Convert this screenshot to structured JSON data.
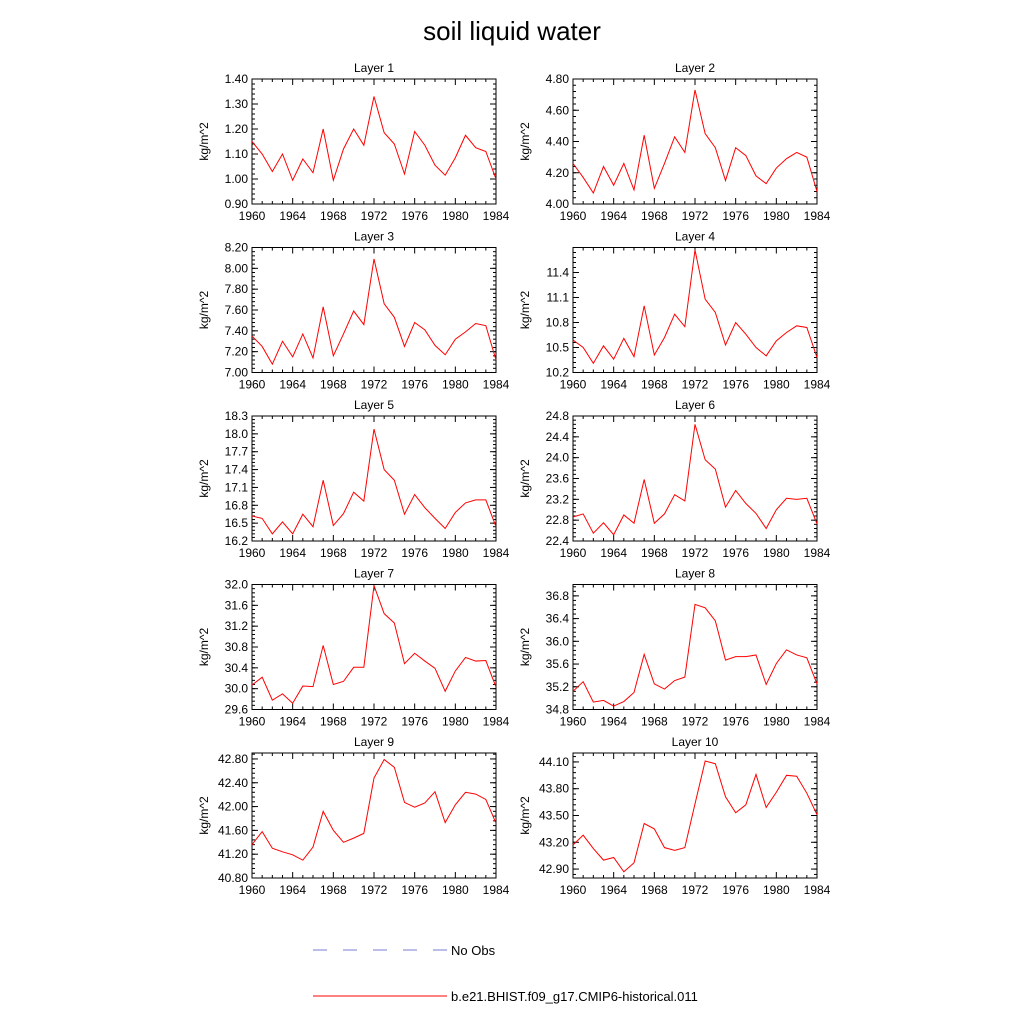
{
  "title": "soil liquid water",
  "legend": {
    "obs_label": "No Obs",
    "obs_color": "#7b7bd6",
    "model_label": "b.e21.BHIST.f09_g17.CMIP6-historical.011",
    "model_color": "#ff0000"
  },
  "chart_data": [
    {
      "type": "line",
      "title": "Layer 1",
      "ylabel": "kg/m^2",
      "xlim": [
        1960,
        1984
      ],
      "ylim": [
        0.9,
        1.4
      ],
      "xticks": [
        1960,
        1964,
        1968,
        1972,
        1976,
        1980,
        1984
      ],
      "yticks": [
        "0.90",
        "1.00",
        "1.10",
        "1.20",
        "1.30",
        "1.40"
      ],
      "x": [
        1960,
        1961,
        1962,
        1963,
        1964,
        1965,
        1966,
        1967,
        1968,
        1969,
        1970,
        1971,
        1972,
        1973,
        1974,
        1975,
        1976,
        1977,
        1978,
        1979,
        1980,
        1981,
        1982,
        1983,
        1984
      ],
      "series": [
        {
          "color": "#ff0000",
          "values": [
            1.15,
            1.1,
            1.03,
            1.1,
            0.995,
            1.08,
            1.025,
            1.2,
            0.995,
            1.12,
            1.2,
            1.135,
            1.33,
            1.185,
            1.14,
            1.02,
            1.19,
            1.135,
            1.055,
            1.015,
            1.085,
            1.175,
            1.125,
            1.11,
            1.0
          ]
        }
      ]
    },
    {
      "type": "line",
      "title": "Layer 2",
      "ylabel": "kg/m^2",
      "xlim": [
        1960,
        1984
      ],
      "ylim": [
        4.0,
        4.8
      ],
      "xticks": [
        1960,
        1964,
        1968,
        1972,
        1976,
        1980,
        1984
      ],
      "yticks": [
        "4.00",
        "4.20",
        "4.40",
        "4.60",
        "4.80"
      ],
      "x": [
        1960,
        1961,
        1962,
        1963,
        1964,
        1965,
        1966,
        1967,
        1968,
        1969,
        1970,
        1971,
        1972,
        1973,
        1974,
        1975,
        1976,
        1977,
        1978,
        1979,
        1980,
        1981,
        1982,
        1983,
        1984
      ],
      "series": [
        {
          "color": "#ff0000",
          "values": [
            4.26,
            4.17,
            4.07,
            4.24,
            4.12,
            4.26,
            4.09,
            4.44,
            4.1,
            4.26,
            4.43,
            4.33,
            4.73,
            4.45,
            4.36,
            4.15,
            4.36,
            4.31,
            4.18,
            4.13,
            4.23,
            4.29,
            4.33,
            4.3,
            4.08
          ]
        }
      ]
    },
    {
      "type": "line",
      "title": "Layer 3",
      "ylabel": "kg/m^2",
      "xlim": [
        1960,
        1984
      ],
      "ylim": [
        7.0,
        8.2
      ],
      "xticks": [
        1960,
        1964,
        1968,
        1972,
        1976,
        1980,
        1984
      ],
      "yticks": [
        "7.00",
        "7.20",
        "7.40",
        "7.60",
        "7.80",
        "8.00",
        "8.20"
      ],
      "x": [
        1960,
        1961,
        1962,
        1963,
        1964,
        1965,
        1966,
        1967,
        1968,
        1969,
        1970,
        1971,
        1972,
        1973,
        1974,
        1975,
        1976,
        1977,
        1978,
        1979,
        1980,
        1981,
        1982,
        1983,
        1984
      ],
      "series": [
        {
          "color": "#ff0000",
          "values": [
            7.35,
            7.25,
            7.08,
            7.3,
            7.15,
            7.37,
            7.14,
            7.63,
            7.16,
            7.37,
            7.59,
            7.46,
            8.09,
            7.66,
            7.53,
            7.25,
            7.48,
            7.41,
            7.26,
            7.17,
            7.32,
            7.39,
            7.47,
            7.45,
            7.12
          ]
        }
      ]
    },
    {
      "type": "line",
      "title": "Layer 4",
      "ylabel": "kg/m^2",
      "xlim": [
        1960,
        1984
      ],
      "ylim": [
        10.2,
        11.7
      ],
      "xticks": [
        1960,
        1964,
        1968,
        1972,
        1976,
        1980,
        1984
      ],
      "yticks": [
        "10.2",
        "10.5",
        "10.8",
        "11.1",
        "11.4"
      ],
      "x": [
        1960,
        1961,
        1962,
        1963,
        1964,
        1965,
        1966,
        1967,
        1968,
        1969,
        1970,
        1971,
        1972,
        1973,
        1974,
        1975,
        1976,
        1977,
        1978,
        1979,
        1980,
        1981,
        1982,
        1983,
        1984
      ],
      "series": [
        {
          "color": "#ff0000",
          "values": [
            10.59,
            10.5,
            10.31,
            10.52,
            10.36,
            10.61,
            10.39,
            11.0,
            10.41,
            10.62,
            10.9,
            10.75,
            11.67,
            11.08,
            10.92,
            10.53,
            10.8,
            10.66,
            10.5,
            10.4,
            10.58,
            10.68,
            10.76,
            10.74,
            10.38
          ]
        }
      ]
    },
    {
      "type": "line",
      "title": "Layer 5",
      "ylabel": "kg/m^2",
      "xlim": [
        1960,
        1984
      ],
      "ylim": [
        16.2,
        18.3
      ],
      "xticks": [
        1960,
        1964,
        1968,
        1972,
        1976,
        1980,
        1984
      ],
      "yticks": [
        "16.2",
        "16.5",
        "16.8",
        "17.1",
        "17.4",
        "17.7",
        "18.0",
        "18.3"
      ],
      "x": [
        1960,
        1961,
        1962,
        1963,
        1964,
        1965,
        1966,
        1967,
        1968,
        1969,
        1970,
        1971,
        1972,
        1973,
        1974,
        1975,
        1976,
        1977,
        1978,
        1979,
        1980,
        1981,
        1982,
        1983,
        1984
      ],
      "series": [
        {
          "color": "#ff0000",
          "values": [
            16.62,
            16.58,
            16.32,
            16.52,
            16.32,
            16.65,
            16.44,
            17.22,
            16.46,
            16.66,
            17.02,
            16.87,
            18.08,
            17.4,
            17.22,
            16.65,
            16.98,
            16.76,
            16.58,
            16.41,
            16.68,
            16.84,
            16.89,
            16.89,
            16.44
          ]
        }
      ]
    },
    {
      "type": "line",
      "title": "Layer 6",
      "ylabel": "kg/m^2",
      "xlim": [
        1960,
        1984
      ],
      "ylim": [
        22.4,
        24.8
      ],
      "xticks": [
        1960,
        1964,
        1968,
        1972,
        1976,
        1980,
        1984
      ],
      "yticks": [
        "22.4",
        "22.8",
        "23.2",
        "23.6",
        "24.0",
        "24.4",
        "24.8"
      ],
      "x": [
        1960,
        1961,
        1962,
        1963,
        1964,
        1965,
        1966,
        1967,
        1968,
        1969,
        1970,
        1971,
        1972,
        1973,
        1974,
        1975,
        1976,
        1977,
        1978,
        1979,
        1980,
        1981,
        1982,
        1983,
        1984
      ],
      "series": [
        {
          "color": "#ff0000",
          "values": [
            22.86,
            22.92,
            22.55,
            22.75,
            22.52,
            22.9,
            22.74,
            23.58,
            22.74,
            22.92,
            23.29,
            23.17,
            24.64,
            23.96,
            23.78,
            23.05,
            23.37,
            23.12,
            22.93,
            22.64,
            23.0,
            23.22,
            23.2,
            23.22,
            22.73
          ]
        }
      ]
    },
    {
      "type": "line",
      "title": "Layer 7",
      "ylabel": "kg/m^2",
      "xlim": [
        1960,
        1984
      ],
      "ylim": [
        29.6,
        32.0
      ],
      "xticks": [
        1960,
        1964,
        1968,
        1972,
        1976,
        1980,
        1984
      ],
      "yticks": [
        "29.6",
        "30.0",
        "30.4",
        "30.8",
        "31.2",
        "31.6",
        "32.0"
      ],
      "x": [
        1960,
        1961,
        1962,
        1963,
        1964,
        1965,
        1966,
        1967,
        1968,
        1969,
        1970,
        1971,
        1972,
        1973,
        1974,
        1975,
        1976,
        1977,
        1978,
        1979,
        1980,
        1981,
        1982,
        1983,
        1984
      ],
      "series": [
        {
          "color": "#ff0000",
          "values": [
            30.07,
            30.22,
            29.78,
            29.9,
            29.72,
            30.05,
            30.04,
            30.83,
            30.08,
            30.14,
            30.41,
            30.41,
            31.98,
            31.44,
            31.26,
            30.48,
            30.68,
            30.53,
            30.39,
            29.95,
            30.34,
            30.6,
            30.53,
            30.54,
            30.03
          ]
        }
      ]
    },
    {
      "type": "line",
      "title": "Layer 8",
      "ylabel": "kg/m^2",
      "xlim": [
        1960,
        1984
      ],
      "ylim": [
        34.8,
        37.0
      ],
      "xticks": [
        1960,
        1964,
        1968,
        1972,
        1976,
        1980,
        1984
      ],
      "yticks": [
        "34.8",
        "35.2",
        "35.6",
        "36.0",
        "36.4",
        "36.8"
      ],
      "x": [
        1960,
        1961,
        1962,
        1963,
        1964,
        1965,
        1966,
        1967,
        1968,
        1969,
        1970,
        1971,
        1972,
        1973,
        1974,
        1975,
        1976,
        1977,
        1978,
        1979,
        1980,
        1981,
        1982,
        1983,
        1984
      ],
      "series": [
        {
          "color": "#ff0000",
          "values": [
            35.12,
            35.29,
            34.93,
            34.96,
            34.86,
            34.94,
            35.1,
            35.77,
            35.25,
            35.16,
            35.31,
            35.37,
            36.65,
            36.59,
            36.36,
            35.67,
            35.73,
            35.73,
            35.76,
            35.24,
            35.61,
            35.85,
            35.76,
            35.71,
            35.25
          ]
        }
      ]
    },
    {
      "type": "line",
      "title": "Layer 9",
      "ylabel": "kg/m^2",
      "xlim": [
        1960,
        1984
      ],
      "ylim": [
        40.8,
        42.9
      ],
      "xticks": [
        1960,
        1964,
        1968,
        1972,
        1976,
        1980,
        1984
      ],
      "yticks": [
        "40.80",
        "41.20",
        "41.60",
        "42.00",
        "42.40",
        "42.80"
      ],
      "x": [
        1960,
        1961,
        1962,
        1963,
        1964,
        1965,
        1966,
        1967,
        1968,
        1969,
        1970,
        1971,
        1972,
        1973,
        1974,
        1975,
        1976,
        1977,
        1978,
        1979,
        1980,
        1981,
        1982,
        1983,
        1984
      ],
      "series": [
        {
          "color": "#ff0000",
          "values": [
            41.36,
            41.58,
            41.3,
            41.24,
            41.19,
            41.1,
            41.32,
            41.92,
            41.6,
            41.4,
            41.47,
            41.55,
            42.48,
            42.79,
            42.66,
            42.07,
            41.99,
            42.06,
            42.25,
            41.73,
            42.03,
            42.24,
            42.21,
            42.12,
            41.72
          ]
        }
      ]
    },
    {
      "type": "line",
      "title": "Layer 10",
      "ylabel": "kg/m^2",
      "xlim": [
        1960,
        1984
      ],
      "ylim": [
        42.8,
        44.2
      ],
      "xticks": [
        1960,
        1964,
        1968,
        1972,
        1976,
        1980,
        1984
      ],
      "yticks": [
        "42.90",
        "43.20",
        "43.50",
        "43.80",
        "44.10"
      ],
      "x": [
        1960,
        1961,
        1962,
        1963,
        1964,
        1965,
        1966,
        1967,
        1968,
        1969,
        1970,
        1971,
        1972,
        1973,
        1974,
        1975,
        1976,
        1977,
        1978,
        1979,
        1980,
        1981,
        1982,
        1983,
        1984
      ],
      "series": [
        {
          "color": "#ff0000",
          "values": [
            43.17,
            43.28,
            43.13,
            43.0,
            43.03,
            42.87,
            42.97,
            43.41,
            43.35,
            43.14,
            43.11,
            43.14,
            43.63,
            44.11,
            44.08,
            43.71,
            43.53,
            43.62,
            43.96,
            43.59,
            43.76,
            43.95,
            43.94,
            43.75,
            43.51
          ]
        }
      ]
    }
  ]
}
